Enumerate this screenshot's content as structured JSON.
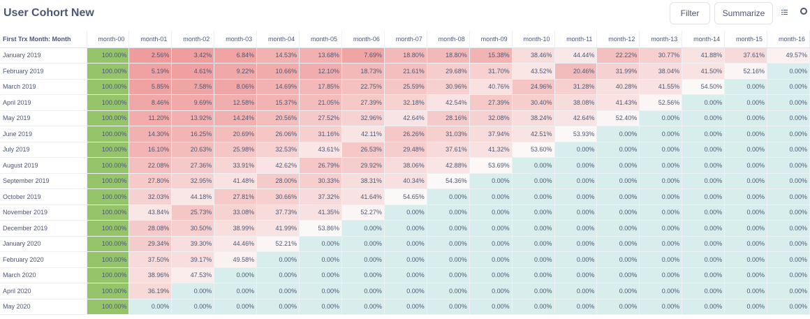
{
  "page": {
    "title": "User Cohort New",
    "filter_label": "Filter",
    "summarize_label": "Summarize",
    "icons": [
      "list-view-icon",
      "more-options-icon"
    ]
  },
  "table": {
    "corner_header": "First Trx Month: Month",
    "columns": [
      "month-00",
      "month-01",
      "month-02",
      "month-03",
      "month-04",
      "month-05",
      "month-06",
      "month-07",
      "month-08",
      "month-09",
      "month-10",
      "month-11",
      "month-12",
      "month-13",
      "month-14",
      "month-15",
      "month-16"
    ],
    "rows": [
      {
        "label": "January 2019",
        "values": [
          "100.00%",
          "2.56%",
          "3.42%",
          "6.84%",
          "14.53%",
          "13.68%",
          "7.69%",
          "18.80%",
          "18.80%",
          "15.38%",
          "38.46%",
          "44.44%",
          "22.22%",
          "30.77%",
          "41.88%",
          "37.61%",
          "49.57%"
        ]
      },
      {
        "label": "February 2019",
        "values": [
          "100.00%",
          "5.19%",
          "4.61%",
          "9.22%",
          "10.66%",
          "12.10%",
          "18.73%",
          "21.61%",
          "29.68%",
          "31.70%",
          "43.52%",
          "20.46%",
          "31.99%",
          "38.04%",
          "41.50%",
          "52.16%",
          "0.00%"
        ]
      },
      {
        "label": "March 2019",
        "values": [
          "100.00%",
          "5.85%",
          "7.58%",
          "8.06%",
          "14.69%",
          "17.85%",
          "22.75%",
          "25.59%",
          "30.96%",
          "40.76%",
          "24.96%",
          "31.28%",
          "40.28%",
          "41.55%",
          "54.50%",
          "0.00%",
          "0.00%"
        ]
      },
      {
        "label": "April 2019",
        "values": [
          "100.00%",
          "8.46%",
          "9.69%",
          "12.58%",
          "15.37%",
          "21.05%",
          "27.39%",
          "32.18%",
          "42.54%",
          "27.39%",
          "30.40%",
          "38.08%",
          "41.43%",
          "52.56%",
          "0.00%",
          "0.00%",
          "0.00%"
        ]
      },
      {
        "label": "May 2019",
        "values": [
          "100.00%",
          "11.20%",
          "13.92%",
          "14.24%",
          "20.56%",
          "27.52%",
          "32.96%",
          "42.64%",
          "28.16%",
          "32.08%",
          "38.24%",
          "42.64%",
          "52.40%",
          "0.00%",
          "0.00%",
          "0.00%",
          "0.00%"
        ]
      },
      {
        "label": "June 2019",
        "values": [
          "100.00%",
          "14.30%",
          "16.25%",
          "20.69%",
          "26.06%",
          "31.16%",
          "42.11%",
          "26.26%",
          "31.03%",
          "37.94%",
          "42.51%",
          "53.93%",
          "0.00%",
          "0.00%",
          "0.00%",
          "0.00%",
          "0.00%"
        ]
      },
      {
        "label": "July 2019",
        "values": [
          "100.00%",
          "16.10%",
          "20.63%",
          "25.98%",
          "32.53%",
          "43.61%",
          "26.53%",
          "29.48%",
          "37.61%",
          "41.32%",
          "53.60%",
          "0.00%",
          "0.00%",
          "0.00%",
          "0.00%",
          "0.00%",
          "0.00%"
        ]
      },
      {
        "label": "August 2019",
        "values": [
          "100.00%",
          "22.08%",
          "27.36%",
          "33.91%",
          "42.62%",
          "26.79%",
          "29.92%",
          "38.06%",
          "42.88%",
          "53.69%",
          "0.00%",
          "0.00%",
          "0.00%",
          "0.00%",
          "0.00%",
          "0.00%",
          "0.00%"
        ]
      },
      {
        "label": "September 2019",
        "values": [
          "100.00%",
          "27.80%",
          "32.95%",
          "41.48%",
          "28.00%",
          "30.33%",
          "38.31%",
          "40.34%",
          "54.36%",
          "0.00%",
          "0.00%",
          "0.00%",
          "0.00%",
          "0.00%",
          "0.00%",
          "0.00%",
          "0.00%"
        ]
      },
      {
        "label": "October 2019",
        "values": [
          "100.00%",
          "32.03%",
          "44.18%",
          "27.81%",
          "30.66%",
          "37.32%",
          "41.64%",
          "54.65%",
          "0.00%",
          "0.00%",
          "0.00%",
          "0.00%",
          "0.00%",
          "0.00%",
          "0.00%",
          "0.00%",
          "0.00%"
        ]
      },
      {
        "label": "November 2019",
        "values": [
          "100.00%",
          "43.84%",
          "25.73%",
          "33.08%",
          "37.73%",
          "41.35%",
          "52.27%",
          "0.00%",
          "0.00%",
          "0.00%",
          "0.00%",
          "0.00%",
          "0.00%",
          "0.00%",
          "0.00%",
          "0.00%",
          "0.00%"
        ]
      },
      {
        "label": "December 2019",
        "values": [
          "100.00%",
          "28.08%",
          "30.50%",
          "38.99%",
          "41.99%",
          "53.86%",
          "0.00%",
          "0.00%",
          "0.00%",
          "0.00%",
          "0.00%",
          "0.00%",
          "0.00%",
          "0.00%",
          "0.00%",
          "0.00%",
          "0.00%"
        ]
      },
      {
        "label": "January 2020",
        "values": [
          "100.00%",
          "29.34%",
          "39.30%",
          "44.46%",
          "52.21%",
          "0.00%",
          "0.00%",
          "0.00%",
          "0.00%",
          "0.00%",
          "0.00%",
          "0.00%",
          "0.00%",
          "0.00%",
          "0.00%",
          "0.00%",
          "0.00%"
        ]
      },
      {
        "label": "February 2020",
        "values": [
          "100.00%",
          "37.50%",
          "39.17%",
          "49.58%",
          "0.00%",
          "0.00%",
          "0.00%",
          "0.00%",
          "0.00%",
          "0.00%",
          "0.00%",
          "0.00%",
          "0.00%",
          "0.00%",
          "0.00%",
          "0.00%",
          "0.00%"
        ]
      },
      {
        "label": "March 2020",
        "values": [
          "100.00%",
          "38.96%",
          "47.53%",
          "0.00%",
          "0.00%",
          "0.00%",
          "0.00%",
          "0.00%",
          "0.00%",
          "0.00%",
          "0.00%",
          "0.00%",
          "0.00%",
          "0.00%",
          "0.00%",
          "0.00%",
          "0.00%"
        ]
      },
      {
        "label": "April 2020",
        "values": [
          "100.00%",
          "36.19%",
          "0.00%",
          "0.00%",
          "0.00%",
          "0.00%",
          "0.00%",
          "0.00%",
          "0.00%",
          "0.00%",
          "0.00%",
          "0.00%",
          "0.00%",
          "0.00%",
          "0.00%",
          "0.00%",
          "0.00%"
        ]
      },
      {
        "label": "May 2020",
        "values": [
          "100.00%",
          "0.00%",
          "0.00%",
          "0.00%",
          "0.00%",
          "0.00%",
          "0.00%",
          "0.00%",
          "0.00%",
          "0.00%",
          "0.00%",
          "0.00%",
          "0.00%",
          "0.00%",
          "0.00%",
          "0.00%",
          "0.00%"
        ]
      }
    ]
  },
  "colors": {
    "full_cell": "#95c46b",
    "low_cell": "#ef9b9b",
    "high_cell": "#fbf9f8",
    "zero_cell": "#d8eeed"
  }
}
